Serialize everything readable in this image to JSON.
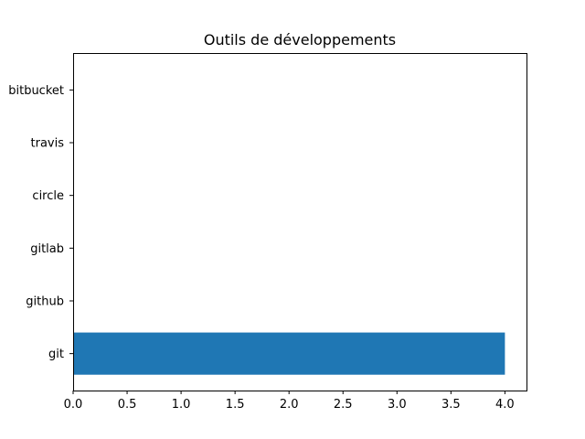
{
  "chart_data": {
    "type": "bar",
    "orientation": "horizontal",
    "title": "Outils de développements",
    "xlabel": "",
    "ylabel": "",
    "categories": [
      "git",
      "github",
      "gitlab",
      "circle",
      "travis",
      "bitbucket"
    ],
    "values": [
      4,
      0,
      0,
      0,
      0,
      0
    ],
    "xlim": [
      0,
      4.2
    ],
    "xticks": [
      "0.0",
      "0.5",
      "1.0",
      "1.5",
      "2.0",
      "2.5",
      "3.0",
      "3.5",
      "4.0"
    ],
    "grid": false,
    "legend": "none",
    "bar_color": "#1f77b4"
  }
}
